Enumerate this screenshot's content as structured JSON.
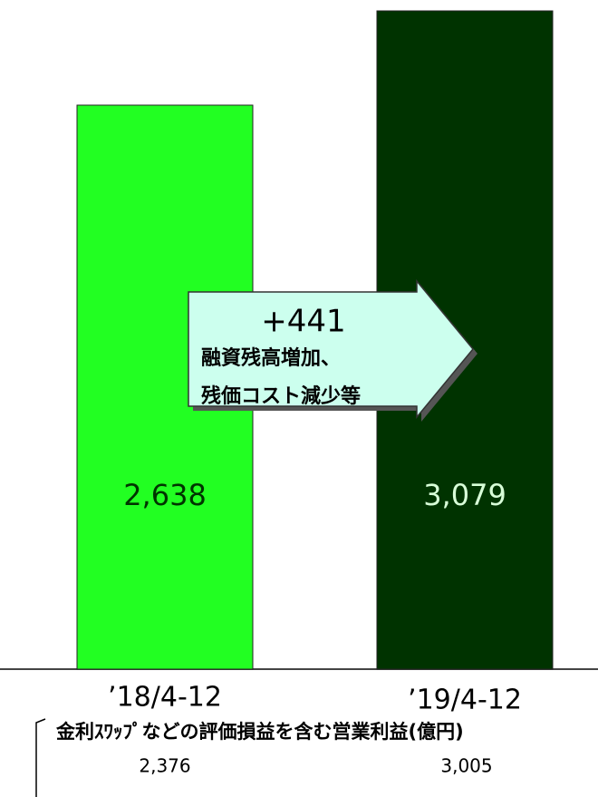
{
  "chart_data": {
    "type": "bar",
    "categories": [
      "’18/4-12",
      "’19/4-12"
    ],
    "values": [
      2638,
      3079
    ],
    "value_labels": [
      "2,638",
      "3,079"
    ],
    "colors": [
      "#22ff22",
      "#003300"
    ],
    "label_colors": [
      "#003300",
      "#d8ffd8"
    ],
    "annotation": {
      "value": 441,
      "label": "+441",
      "lines": [
        "融資残高増加、",
        "残価コスト減少等"
      ]
    },
    "note": {
      "title": "金利ｽﾜｯﾌﾟなどの評価損益を含む営業利益(億円)",
      "values": [
        2376,
        3005
      ],
      "value_labels": [
        "2,376",
        "3,005"
      ]
    }
  }
}
